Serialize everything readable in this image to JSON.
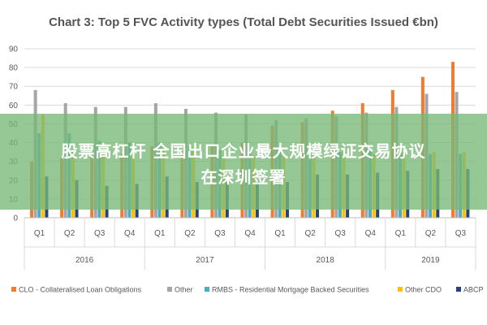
{
  "chart_data": {
    "type": "bar",
    "title": "Chart 3: Top 5 FVC Activity types (Total Debt Securities Issued €bn)",
    "xlabel": "",
    "ylabel": "",
    "ylim": [
      0,
      90
    ],
    "yticks": [
      0,
      10,
      20,
      30,
      40,
      50,
      60,
      70,
      80,
      90
    ],
    "grid": true,
    "legend_position": "bottom",
    "categories": [
      "Q1",
      "Q2",
      "Q3",
      "Q4",
      "Q1",
      "Q2",
      "Q3",
      "Q4",
      "Q1",
      "Q2",
      "Q3",
      "Q4",
      "Q1",
      "Q2",
      "Q3"
    ],
    "groups": [
      {
        "label": "2016",
        "count": 4
      },
      {
        "label": "2017",
        "count": 4
      },
      {
        "label": "2018",
        "count": 4
      },
      {
        "label": "2019",
        "count": 3
      }
    ],
    "series": [
      {
        "name": "CLO - Collateralised Loan Obligations",
        "color": "#ED7D31",
        "values": [
          30,
          32,
          33,
          34,
          38,
          36,
          38,
          40,
          49,
          51,
          57,
          61,
          68,
          75,
          83
        ]
      },
      {
        "name": "Other",
        "color": "#A5A5A5",
        "values": [
          68,
          61,
          59,
          59,
          61,
          58,
          56,
          55,
          52,
          53,
          54,
          56,
          59,
          66,
          67
        ]
      },
      {
        "name": "RMBS - Residential Mortgage Backed Securities",
        "color": "#4BACC6",
        "values": [
          45,
          45,
          41,
          40,
          40,
          38,
          36,
          36,
          35,
          35,
          35,
          36,
          35,
          34,
          34
        ]
      },
      {
        "name": "Other CDO",
        "color": "#FFC000",
        "values": [
          55,
          36,
          37,
          38,
          38,
          37,
          33,
          33,
          33,
          34,
          35,
          34,
          35,
          35,
          35
        ]
      },
      {
        "name": "ABCP",
        "color": "#264478",
        "values": [
          22,
          20,
          17,
          18,
          22,
          19,
          19,
          19,
          19,
          23,
          23,
          24,
          25,
          26,
          26
        ]
      }
    ]
  },
  "overlay": {
    "line1": "股票高杠杆 全国出口企业最大规模绿证交易协议",
    "line2": "在深圳签署"
  }
}
